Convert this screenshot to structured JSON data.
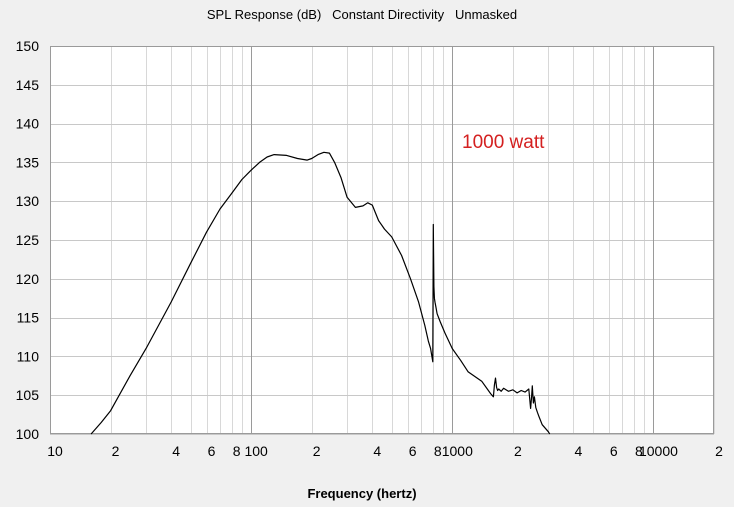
{
  "chart_data": {
    "type": "line",
    "title": "SPL Response (dB)   Constant Directivity   Unmasked",
    "xlabel": "Frequency (hertz)",
    "ylabel": "",
    "x_scale": "log",
    "xlim": [
      10,
      20000
    ],
    "ylim": [
      100,
      150
    ],
    "y_ticks": [
      100,
      105,
      110,
      115,
      120,
      125,
      130,
      135,
      140,
      145,
      150
    ],
    "x_tick_labels": [
      {
        "value": 10,
        "label": "10"
      },
      {
        "value": 20,
        "label": "2"
      },
      {
        "value": 40,
        "label": "4"
      },
      {
        "value": 60,
        "label": "6"
      },
      {
        "value": 80,
        "label": "8"
      },
      {
        "value": 100,
        "label": "100"
      },
      {
        "value": 200,
        "label": "2"
      },
      {
        "value": 400,
        "label": "4"
      },
      {
        "value": 600,
        "label": "6"
      },
      {
        "value": 800,
        "label": "8"
      },
      {
        "value": 1000,
        "label": "1000"
      },
      {
        "value": 2000,
        "label": "2"
      },
      {
        "value": 4000,
        "label": "4"
      },
      {
        "value": 6000,
        "label": "6"
      },
      {
        "value": 8000,
        "label": "8"
      },
      {
        "value": 10000,
        "label": "10000"
      },
      {
        "value": 20000,
        "label": "2"
      }
    ],
    "grid": true,
    "annotation": "1000 watt",
    "series": [
      {
        "x": [
          16,
          18,
          20,
          25,
          30,
          40,
          50,
          60,
          70,
          80,
          90,
          100,
          110,
          120,
          130,
          150,
          170,
          190,
          200,
          215,
          230,
          245,
          260,
          280,
          300,
          330,
          360,
          380,
          400,
          430,
          460,
          500,
          560,
          620,
          680,
          730,
          760,
          780,
          800,
          805,
          810,
          815,
          820,
          830,
          840,
          870,
          920,
          1000,
          1100,
          1200,
          1400,
          1550,
          1600,
          1620,
          1640,
          1660,
          1680,
          1700,
          1750,
          1800,
          1900,
          2000,
          2100,
          2200,
          2300,
          2400,
          2450,
          2480,
          2500,
          2530,
          2560,
          2600,
          2650,
          2700,
          2800,
          3000,
          3050
        ],
        "y": [
          100,
          101.5,
          103,
          107.5,
          111,
          117,
          122,
          126,
          129,
          131,
          132.8,
          134,
          135,
          135.7,
          136,
          135.9,
          135.5,
          135.3,
          135.5,
          136,
          136.3,
          136.2,
          135,
          133,
          130.5,
          129.2,
          129.4,
          129.8,
          129.5,
          127.5,
          126.4,
          125.4,
          123,
          120,
          117,
          114,
          112,
          111,
          109.3,
          127,
          119,
          117.5,
          117,
          116.3,
          115.5,
          114.5,
          113,
          111,
          109.5,
          108,
          106.8,
          105.2,
          104.8,
          106.3,
          107.2,
          106,
          105.6,
          105.8,
          105.5,
          105.9,
          105.5,
          105.7,
          105.3,
          105.6,
          105.4,
          105.8,
          103.3,
          104.8,
          106.2,
          104,
          104.8,
          103.4,
          102.8,
          102.2,
          101.2,
          100.3,
          100
        ]
      }
    ]
  }
}
